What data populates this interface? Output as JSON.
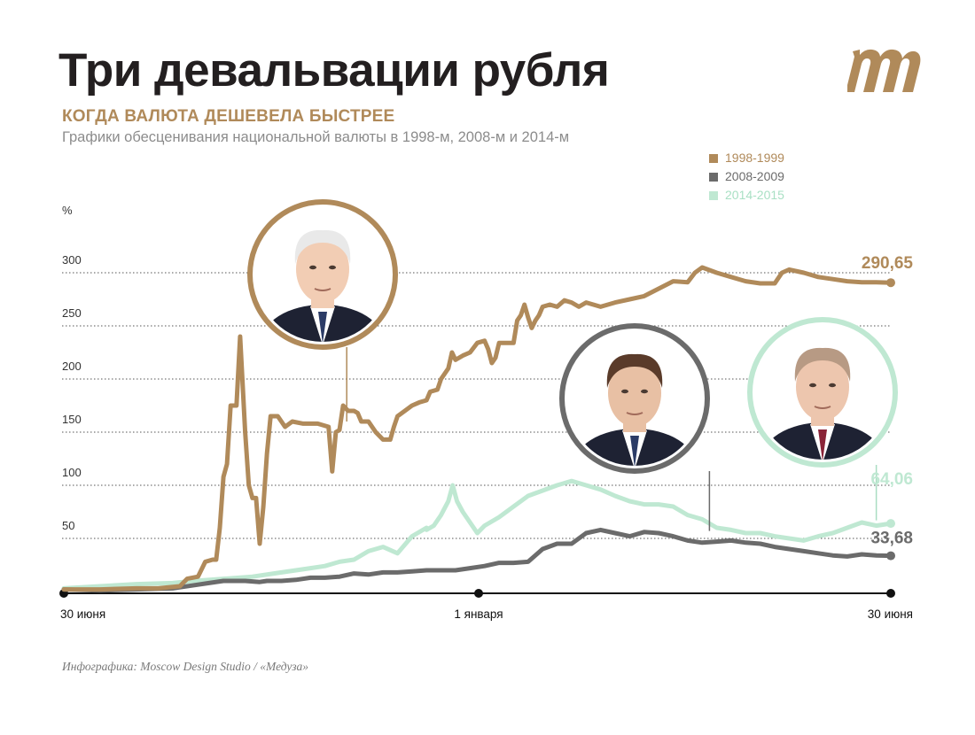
{
  "header": {
    "title": "Три девальвации рубля",
    "subtitle": "КОГДА ВАЛЮТА ДЕШЕВЕЛА БЫСТРЕЕ",
    "description": "Графики обесценивания национальной валюты в 1998-м, 2008-м и 2014-м"
  },
  "credit": "Инфографика: Moscow Design Studio / «Медуза»",
  "colors": {
    "brown": "#b08a5a",
    "gray": "#6b6b6b",
    "mint": "#bfe8d2",
    "grid": "#555555",
    "text": "#231f20"
  },
  "icons": {
    "logo": "meduza-m-logo-icon",
    "portraits": [
      "person-portrait-icon",
      "person-portrait-icon",
      "person-portrait-icon"
    ]
  },
  "chart_data": {
    "type": "line",
    "title": "Три девальвации рубля",
    "ylabel": "%",
    "ylim": [
      0,
      300
    ],
    "xlim": [
      0,
      12
    ],
    "grid": true,
    "legend_position": "top-right",
    "y_ticks": [
      50,
      100,
      150,
      200,
      250,
      300
    ],
    "x_labels": [
      {
        "x": 0,
        "label": "30 июня"
      },
      {
        "x": 6,
        "label": "1 января"
      },
      {
        "x": 12,
        "label": "30 июня"
      }
    ],
    "series": [
      {
        "name": "1998-1999",
        "color": "#b08a5a",
        "end_label": "290,65",
        "points": [
          [
            0,
            2
          ],
          [
            0.5,
            2
          ],
          [
            1,
            3
          ],
          [
            1.3,
            3
          ],
          [
            1.6,
            5
          ],
          [
            1.7,
            12
          ],
          [
            1.85,
            14
          ],
          [
            1.95,
            28
          ],
          [
            2.05,
            30
          ],
          [
            2.1,
            30
          ],
          [
            2.15,
            60
          ],
          [
            2.2,
            108
          ],
          [
            2.25,
            120
          ],
          [
            2.3,
            175
          ],
          [
            2.38,
            175
          ],
          [
            2.43,
            240
          ],
          [
            2.5,
            150
          ],
          [
            2.55,
            100
          ],
          [
            2.6,
            88
          ],
          [
            2.65,
            88
          ],
          [
            2.7,
            45
          ],
          [
            2.75,
            80
          ],
          [
            2.8,
            130
          ],
          [
            2.85,
            165
          ],
          [
            2.95,
            165
          ],
          [
            3.05,
            155
          ],
          [
            3.15,
            160
          ],
          [
            3.3,
            158
          ],
          [
            3.5,
            158
          ],
          [
            3.65,
            155
          ],
          [
            3.7,
            113
          ],
          [
            3.75,
            150
          ],
          [
            3.8,
            152
          ],
          [
            3.85,
            175
          ],
          [
            3.92,
            170
          ],
          [
            4.0,
            170
          ],
          [
            4.05,
            168
          ],
          [
            4.1,
            160
          ],
          [
            4.2,
            160
          ],
          [
            4.3,
            150
          ],
          [
            4.4,
            143
          ],
          [
            4.5,
            143
          ],
          [
            4.55,
            155
          ],
          [
            4.6,
            165
          ],
          [
            4.7,
            170
          ],
          [
            4.8,
            175
          ],
          [
            4.9,
            178
          ],
          [
            5.0,
            180
          ],
          [
            5.05,
            188
          ],
          [
            5.15,
            190
          ],
          [
            5.2,
            200
          ],
          [
            5.3,
            210
          ],
          [
            5.35,
            225
          ],
          [
            5.4,
            218
          ],
          [
            5.5,
            222
          ],
          [
            5.6,
            225
          ],
          [
            5.7,
            234
          ],
          [
            5.8,
            236
          ],
          [
            5.85,
            228
          ],
          [
            5.9,
            215
          ],
          [
            5.95,
            220
          ],
          [
            6.0,
            234
          ],
          [
            6.1,
            234
          ],
          [
            6.2,
            234
          ],
          [
            6.25,
            255
          ],
          [
            6.3,
            260
          ],
          [
            6.35,
            270
          ],
          [
            6.4,
            258
          ],
          [
            6.45,
            248
          ],
          [
            6.5,
            255
          ],
          [
            6.55,
            260
          ],
          [
            6.6,
            268
          ],
          [
            6.7,
            270
          ],
          [
            6.8,
            268
          ],
          [
            6.9,
            274
          ],
          [
            7.0,
            272
          ],
          [
            7.1,
            268
          ],
          [
            7.2,
            272
          ],
          [
            7.4,
            268
          ],
          [
            7.6,
            272
          ],
          [
            7.8,
            275
          ],
          [
            8.0,
            278
          ],
          [
            8.2,
            285
          ],
          [
            8.4,
            292
          ],
          [
            8.6,
            291
          ],
          [
            8.7,
            300
          ],
          [
            8.8,
            305
          ],
          [
            9.0,
            300
          ],
          [
            9.2,
            296
          ],
          [
            9.4,
            292
          ],
          [
            9.6,
            290
          ],
          [
            9.8,
            290
          ],
          [
            9.9,
            300
          ],
          [
            10.0,
            303
          ],
          [
            10.2,
            300
          ],
          [
            10.4,
            296
          ],
          [
            10.6,
            294
          ],
          [
            10.8,
            292
          ],
          [
            11.0,
            291
          ],
          [
            11.2,
            291
          ],
          [
            11.4,
            290.65
          ]
        ]
      },
      {
        "name": "2008-2009",
        "color": "#6b6b6b",
        "end_label": "33,68",
        "points": [
          [
            0,
            2
          ],
          [
            0.5,
            1
          ],
          [
            1,
            2
          ],
          [
            1.5,
            3
          ],
          [
            1.8,
            6
          ],
          [
            2,
            8
          ],
          [
            2.2,
            10
          ],
          [
            2.5,
            10
          ],
          [
            2.7,
            9
          ],
          [
            2.8,
            10
          ],
          [
            3,
            10
          ],
          [
            3.2,
            11
          ],
          [
            3.4,
            13
          ],
          [
            3.6,
            13
          ],
          [
            3.8,
            14
          ],
          [
            4,
            17
          ],
          [
            4.2,
            16
          ],
          [
            4.4,
            18
          ],
          [
            4.6,
            18
          ],
          [
            4.8,
            19
          ],
          [
            5,
            20
          ],
          [
            5.2,
            20
          ],
          [
            5.4,
            20
          ],
          [
            5.6,
            22
          ],
          [
            5.8,
            24
          ],
          [
            6,
            27
          ],
          [
            6.2,
            27
          ],
          [
            6.4,
            28
          ],
          [
            6.6,
            40
          ],
          [
            6.8,
            45
          ],
          [
            7,
            45
          ],
          [
            7.2,
            55
          ],
          [
            7.4,
            58
          ],
          [
            7.6,
            55
          ],
          [
            7.8,
            52
          ],
          [
            8,
            56
          ],
          [
            8.2,
            55
          ],
          [
            8.4,
            52
          ],
          [
            8.6,
            48
          ],
          [
            8.8,
            46
          ],
          [
            9,
            47
          ],
          [
            9.2,
            48
          ],
          [
            9.4,
            46
          ],
          [
            9.6,
            45
          ],
          [
            9.8,
            42
          ],
          [
            10,
            40
          ],
          [
            10.2,
            38
          ],
          [
            10.4,
            36
          ],
          [
            10.6,
            34
          ],
          [
            10.8,
            33
          ],
          [
            11,
            35
          ],
          [
            11.2,
            34
          ],
          [
            11.4,
            33.68
          ]
        ]
      },
      {
        "name": "2014-2015",
        "color": "#bfe8d2",
        "end_label": "64,06",
        "points": [
          [
            0,
            3
          ],
          [
            0.5,
            5
          ],
          [
            1,
            7
          ],
          [
            1.5,
            8
          ],
          [
            1.8,
            10
          ],
          [
            2.2,
            12
          ],
          [
            2.6,
            14
          ],
          [
            3,
            18
          ],
          [
            3.4,
            22
          ],
          [
            3.6,
            24
          ],
          [
            3.8,
            28
          ],
          [
            4,
            30
          ],
          [
            4.2,
            38
          ],
          [
            4.4,
            42
          ],
          [
            4.6,
            36
          ],
          [
            4.8,
            52
          ],
          [
            5,
            60
          ],
          [
            5,
            58
          ],
          [
            5.1,
            62
          ],
          [
            5.2,
            72
          ],
          [
            5.3,
            85
          ],
          [
            5.36,
            100
          ],
          [
            5.42,
            85
          ],
          [
            5.5,
            75
          ],
          [
            5.6,
            65
          ],
          [
            5.7,
            55
          ],
          [
            5.8,
            62
          ],
          [
            6,
            70
          ],
          [
            6.2,
            80
          ],
          [
            6.4,
            90
          ],
          [
            6.6,
            95
          ],
          [
            6.8,
            100
          ],
          [
            7,
            104
          ],
          [
            7.2,
            100
          ],
          [
            7.4,
            96
          ],
          [
            7.6,
            90
          ],
          [
            7.8,
            85
          ],
          [
            8,
            82
          ],
          [
            8.2,
            82
          ],
          [
            8.4,
            80
          ],
          [
            8.6,
            72
          ],
          [
            8.8,
            68
          ],
          [
            9,
            60
          ],
          [
            9.2,
            58
          ],
          [
            9.4,
            55
          ],
          [
            9.6,
            55
          ],
          [
            9.8,
            52
          ],
          [
            10,
            50
          ],
          [
            10.2,
            48
          ],
          [
            10.4,
            52
          ],
          [
            10.6,
            55
          ],
          [
            10.8,
            60
          ],
          [
            11,
            65
          ],
          [
            11.2,
            62
          ],
          [
            11.4,
            64.06
          ]
        ]
      }
    ],
    "portraits": [
      {
        "series": "1998-1999",
        "anchor_x": 3.9,
        "anchor_y": 155,
        "color": "#b08a5a"
      },
      {
        "series": "2008-2009",
        "anchor_x": 8.9,
        "anchor_y": 52,
        "color": "#6b6b6b"
      },
      {
        "series": "2014-2015",
        "anchor_x": 11.2,
        "anchor_y": 62,
        "color": "#bfe8d2"
      }
    ]
  }
}
